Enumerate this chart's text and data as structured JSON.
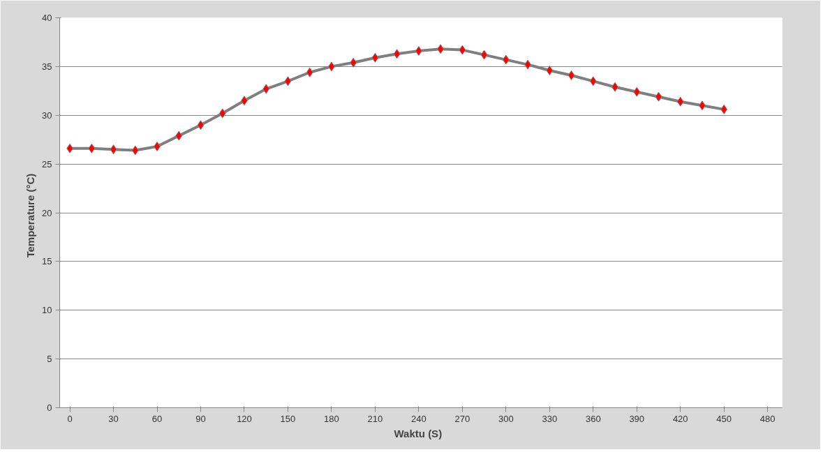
{
  "chart_data": {
    "type": "line",
    "xlabel": "Waktu   (S)",
    "ylabel": "Temperature   (°C)",
    "x": [
      0,
      15,
      30,
      45,
      60,
      75,
      90,
      105,
      120,
      135,
      150,
      165,
      180,
      195,
      210,
      225,
      240,
      255,
      270,
      285,
      300,
      315,
      330,
      345,
      360,
      375,
      390,
      405,
      420,
      435,
      450
    ],
    "series": [
      {
        "color": "#7f7f7f",
        "values": [
          26.6,
          26.6,
          26.5,
          26.4,
          26.8,
          27.9,
          29.0,
          30.2,
          31.5,
          32.7,
          33.5,
          34.4,
          35.0,
          35.4,
          35.9,
          36.3,
          36.6,
          36.8,
          36.7,
          36.2,
          35.7,
          35.2,
          34.6,
          34.1,
          33.5,
          32.9,
          32.4,
          31.9,
          31.4,
          31.0,
          30.6
        ]
      }
    ],
    "marker": "diamond",
    "line_style": "solid",
    "grid": "y",
    "xlim": [
      -7,
      490
    ],
    "xticks": [
      0,
      30,
      60,
      90,
      120,
      150,
      180,
      210,
      240,
      270,
      300,
      330,
      360,
      390,
      420,
      450,
      480
    ],
    "ylim": [
      0,
      40
    ],
    "yticks": [
      0,
      5,
      10,
      15,
      20,
      25,
      30,
      35,
      40
    ]
  }
}
